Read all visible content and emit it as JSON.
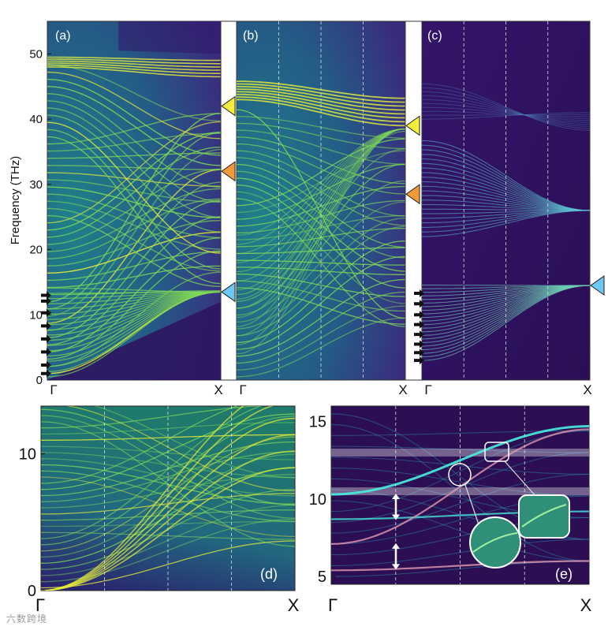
{
  "figure": {
    "watermark": "六数跨境"
  },
  "colors": {
    "background": "#2b0f52",
    "band": "#7ed957",
    "band_bright": "#e8ef3a",
    "mode_cyan": "#48f0e0",
    "mode_pink": "#e09ab0",
    "marker_yellow": "#f4ef3a",
    "marker_orange": "#f29a3a",
    "marker_blue": "#6cc7f2"
  },
  "chart_data": [
    {
      "type": "heatmap",
      "panel": "(a)",
      "ylabel": "Frequency (THz)",
      "yticks": [
        0,
        10,
        20,
        30,
        40,
        50
      ],
      "ylim": [
        0,
        55
      ],
      "xticks": [
        "Γ",
        "X"
      ],
      "grid": false,
      "markers": [
        {
          "color": "yellow",
          "y": 42
        },
        {
          "color": "orange",
          "y": 32
        },
        {
          "color": "blue",
          "y": 13.5
        }
      ],
      "arrows_y": [
        1,
        2.3,
        4.3,
        6.3,
        8.3,
        10.3,
        12.1,
        13
      ]
    },
    {
      "type": "heatmap",
      "panel": "(b)",
      "ylim": [
        0,
        55
      ],
      "xticks": [
        "Γ",
        "X"
      ],
      "grid": true,
      "markers": [
        {
          "color": "yellow",
          "y": 39
        },
        {
          "color": "orange",
          "y": 28.5
        }
      ]
    },
    {
      "type": "heatmap",
      "panel": "(c)",
      "ylim": [
        0,
        55
      ],
      "xticks": [
        "Γ",
        "X"
      ],
      "grid": true,
      "markers": [
        {
          "color": "blue",
          "y": 14.5
        }
      ],
      "arrows_y": [
        3,
        4.2,
        5.5,
        7,
        8.5,
        10,
        11.7,
        13.3
      ]
    },
    {
      "type": "heatmap",
      "panel": "(d)",
      "yticks": [
        0,
        10
      ],
      "ylim": [
        0,
        13.5
      ],
      "xticks": [
        "Γ",
        "X"
      ],
      "grid": true
    },
    {
      "type": "heatmap",
      "panel": "(e)",
      "yticks": [
        5,
        10,
        15
      ],
      "ylim": [
        4.5,
        16
      ],
      "xticks": [
        "Γ",
        "X"
      ],
      "grid": true,
      "highlight_bands_y": [
        13,
        10.5
      ],
      "gap_arrows": [
        [
          5.5,
          7.1
        ],
        [
          8.7,
          10.3
        ]
      ]
    }
  ]
}
